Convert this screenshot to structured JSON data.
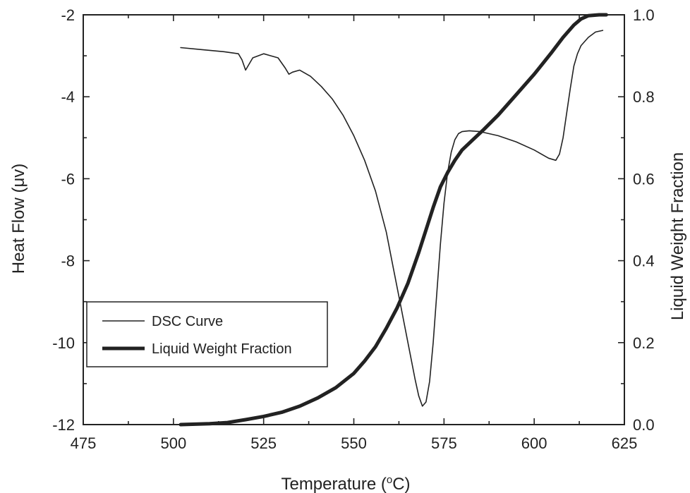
{
  "chart_data": {
    "type": "line",
    "xlabel": "Temperature (",
    "xlabel_sup": "o",
    "xlabel_suffix": "C)",
    "ylabel_left": "Heat Flow (μv)",
    "ylabel_right": "Liquid Weight Fraction",
    "xlim": [
      475,
      625
    ],
    "ylim_left": [
      -12,
      -2
    ],
    "ylim_right": [
      0.0,
      1.0
    ],
    "x_ticks": [
      "475",
      "500",
      "525",
      "550",
      "575",
      "600",
      "625"
    ],
    "y_left_ticks": [
      "-2",
      "-4",
      "-6",
      "-8",
      "-10",
      "-12"
    ],
    "y_right_ticks": [
      "1.0",
      "0.8",
      "0.6",
      "0.4",
      "0.2",
      "0.0"
    ],
    "grid": false,
    "legend": {
      "position": "lower-left",
      "entries": [
        "DSC Curve",
        "Liquid Weight Fraction"
      ]
    },
    "series": [
      {
        "name": "DSC Curve",
        "axis": "left",
        "color": "#222222",
        "x": [
          502,
          508,
          514,
          518,
          519,
          520,
          522,
          525,
          529,
          531,
          532,
          533,
          535,
          538,
          541,
          544,
          547,
          550,
          553,
          556,
          559,
          561,
          563,
          565,
          567,
          568,
          569,
          570,
          571,
          572,
          573,
          574,
          575,
          576,
          577,
          578,
          579,
          580,
          582,
          585,
          590,
          595,
          600,
          604,
          606,
          607,
          608,
          609,
          610,
          611,
          612,
          613,
          615,
          617,
          619
        ],
        "y": [
          -2.8,
          -2.85,
          -2.9,
          -2.95,
          -3.1,
          -3.35,
          -3.05,
          -2.95,
          -3.05,
          -3.3,
          -3.45,
          -3.4,
          -3.35,
          -3.5,
          -3.75,
          -4.05,
          -4.45,
          -4.95,
          -5.55,
          -6.3,
          -7.3,
          -8.2,
          -9.1,
          -10.0,
          -10.9,
          -11.3,
          -11.55,
          -11.45,
          -10.95,
          -10.0,
          -8.8,
          -7.6,
          -6.6,
          -5.85,
          -5.35,
          -5.05,
          -4.9,
          -4.85,
          -4.83,
          -4.85,
          -4.95,
          -5.1,
          -5.3,
          -5.5,
          -5.55,
          -5.4,
          -5.0,
          -4.4,
          -3.8,
          -3.25,
          -2.95,
          -2.75,
          -2.55,
          -2.42,
          -2.38
        ]
      },
      {
        "name": "Liquid Weight Fraction",
        "axis": "right",
        "color": "#222222",
        "x": [
          502,
          510,
          515,
          520,
          525,
          530,
          535,
          540,
          545,
          550,
          553,
          556,
          559,
          562,
          565,
          568,
          570,
          572,
          574,
          576,
          578,
          580,
          583,
          586,
          590,
          595,
          600,
          605,
          608,
          611,
          613,
          615,
          618,
          620
        ],
        "y": [
          0.0,
          0.002,
          0.005,
          0.012,
          0.02,
          0.03,
          0.045,
          0.065,
          0.09,
          0.125,
          0.155,
          0.19,
          0.235,
          0.285,
          0.345,
          0.42,
          0.475,
          0.53,
          0.58,
          0.615,
          0.645,
          0.67,
          0.695,
          0.72,
          0.755,
          0.805,
          0.855,
          0.91,
          0.945,
          0.975,
          0.99,
          0.998,
          1.0,
          1.0
        ]
      }
    ]
  }
}
